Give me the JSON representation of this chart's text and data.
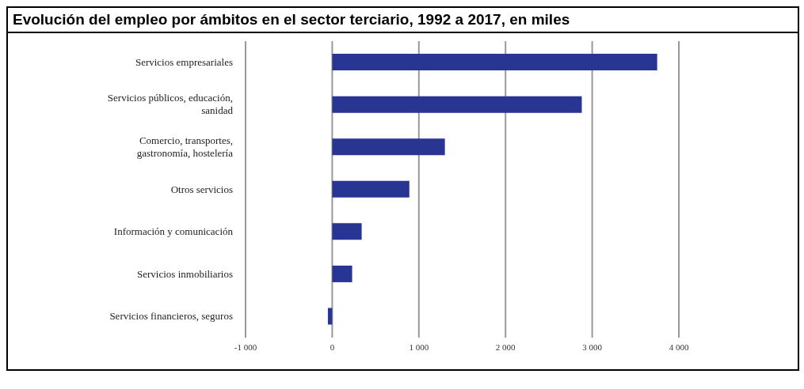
{
  "chart_data": {
    "type": "bar",
    "orientation": "horizontal",
    "title": "Evolución del empleo por ámbitos en el sector terciario, 1992 a 2017, en miles",
    "categories": [
      "Servicios empresariales",
      "Servicios públicos, educación, sanidad",
      "Comercio, transportes, gastronomía, hostelería",
      "Otros servicios",
      "Información y comunicación",
      "Servicios inmobiliarios",
      "Servicios financieros, seguros"
    ],
    "values": [
      3750,
      2880,
      1300,
      890,
      340,
      230,
      -50
    ],
    "color": "#283593",
    "xlim": [
      -1000,
      4000
    ],
    "xticks": [
      {
        "value": -1000,
        "label": "-1 000"
      },
      0,
      {
        "value": 1000,
        "label": "1 000"
      },
      {
        "value": 2000,
        "label": "2 000"
      },
      {
        "value": 3000,
        "label": "3 000"
      },
      {
        "value": 4000,
        "label": "4 000"
      }
    ],
    "grid": "x"
  }
}
